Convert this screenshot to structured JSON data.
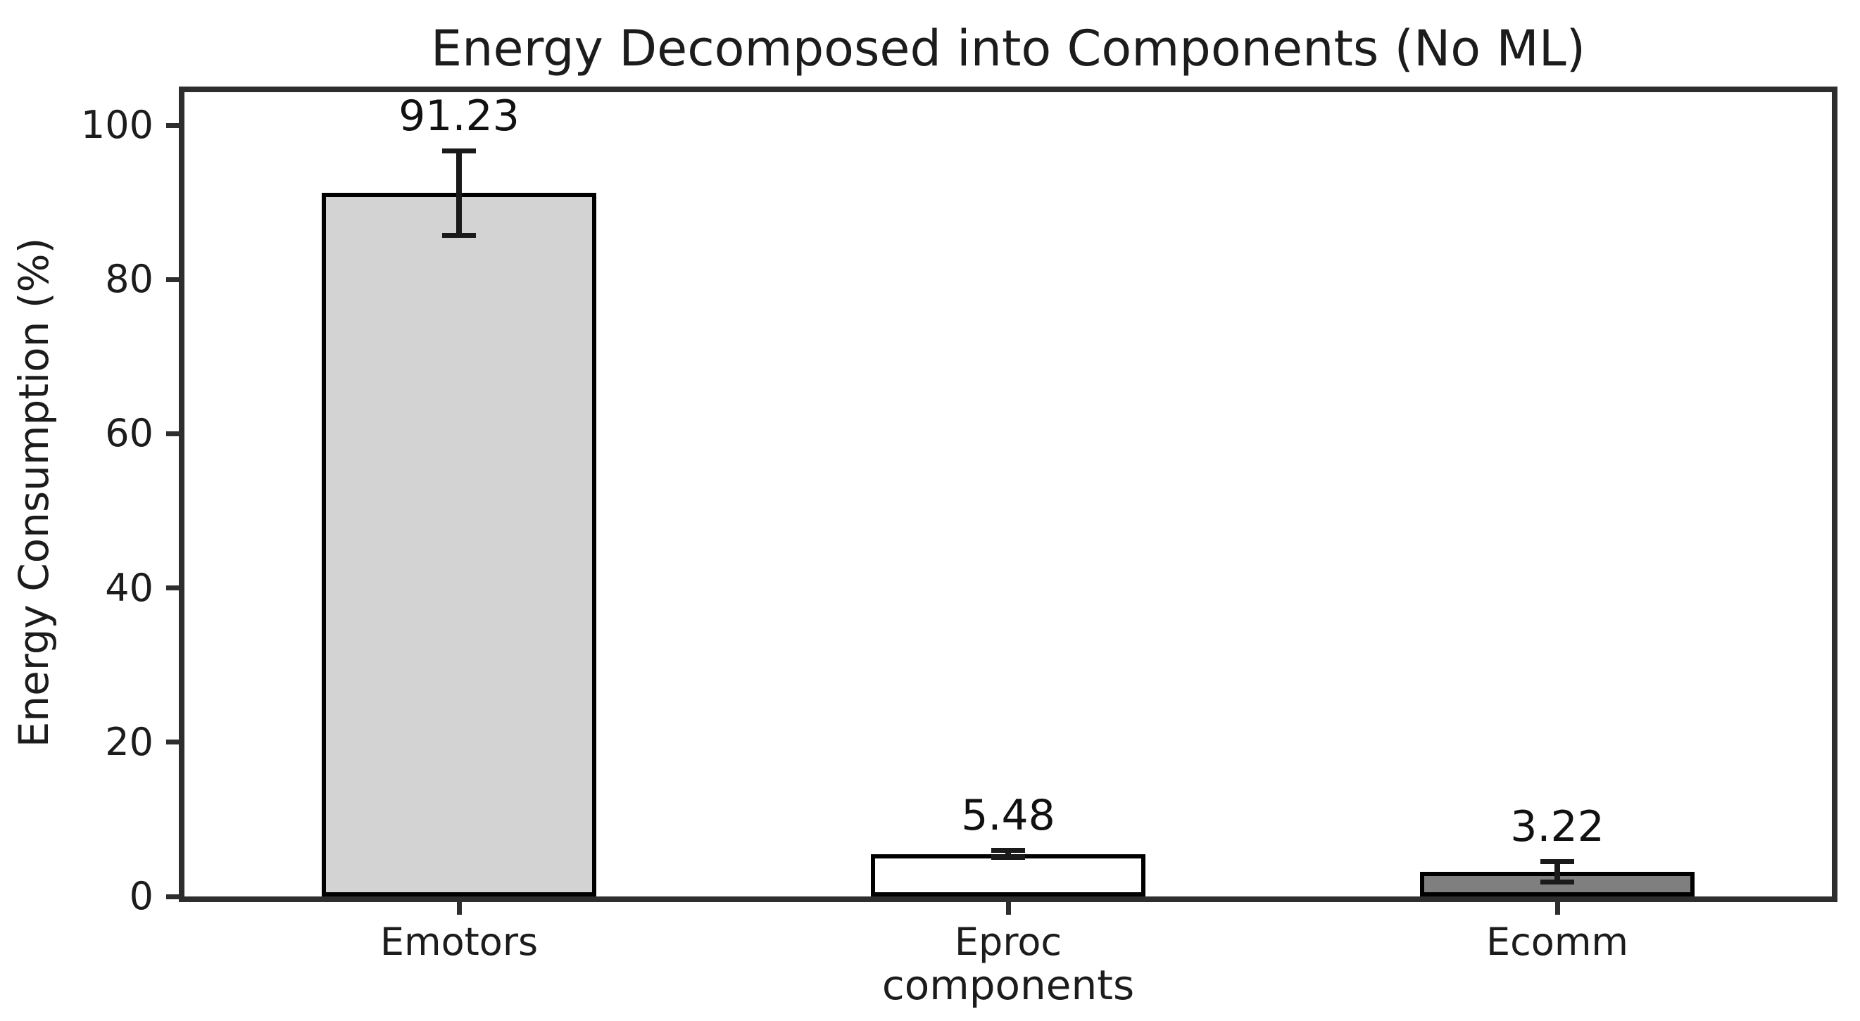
{
  "chart_data": {
    "type": "bar",
    "title": "Energy Decomposed into Components (No ML)",
    "xlabel": "components",
    "ylabel": "Energy Consumption (%)",
    "categories": [
      "Emotors",
      "Eproc",
      "Ecomm"
    ],
    "values": [
      91.23,
      5.48,
      3.22
    ],
    "errors": [
      5.5,
      0.5,
      1.35
    ],
    "value_labels": [
      "91.23",
      "5.48",
      "3.22"
    ],
    "bar_colors": [
      "#d3d3d3",
      "#ffffff",
      "#7f7f7f"
    ],
    "bar_edge_color": "#000000",
    "error_bar_color": "#1a1a1a",
    "axis_color": "#2e2e2e",
    "yticks": [
      0,
      20,
      40,
      60,
      80,
      100
    ],
    "ylim": [
      0,
      104.3
    ],
    "grid": false,
    "legend": null
  }
}
